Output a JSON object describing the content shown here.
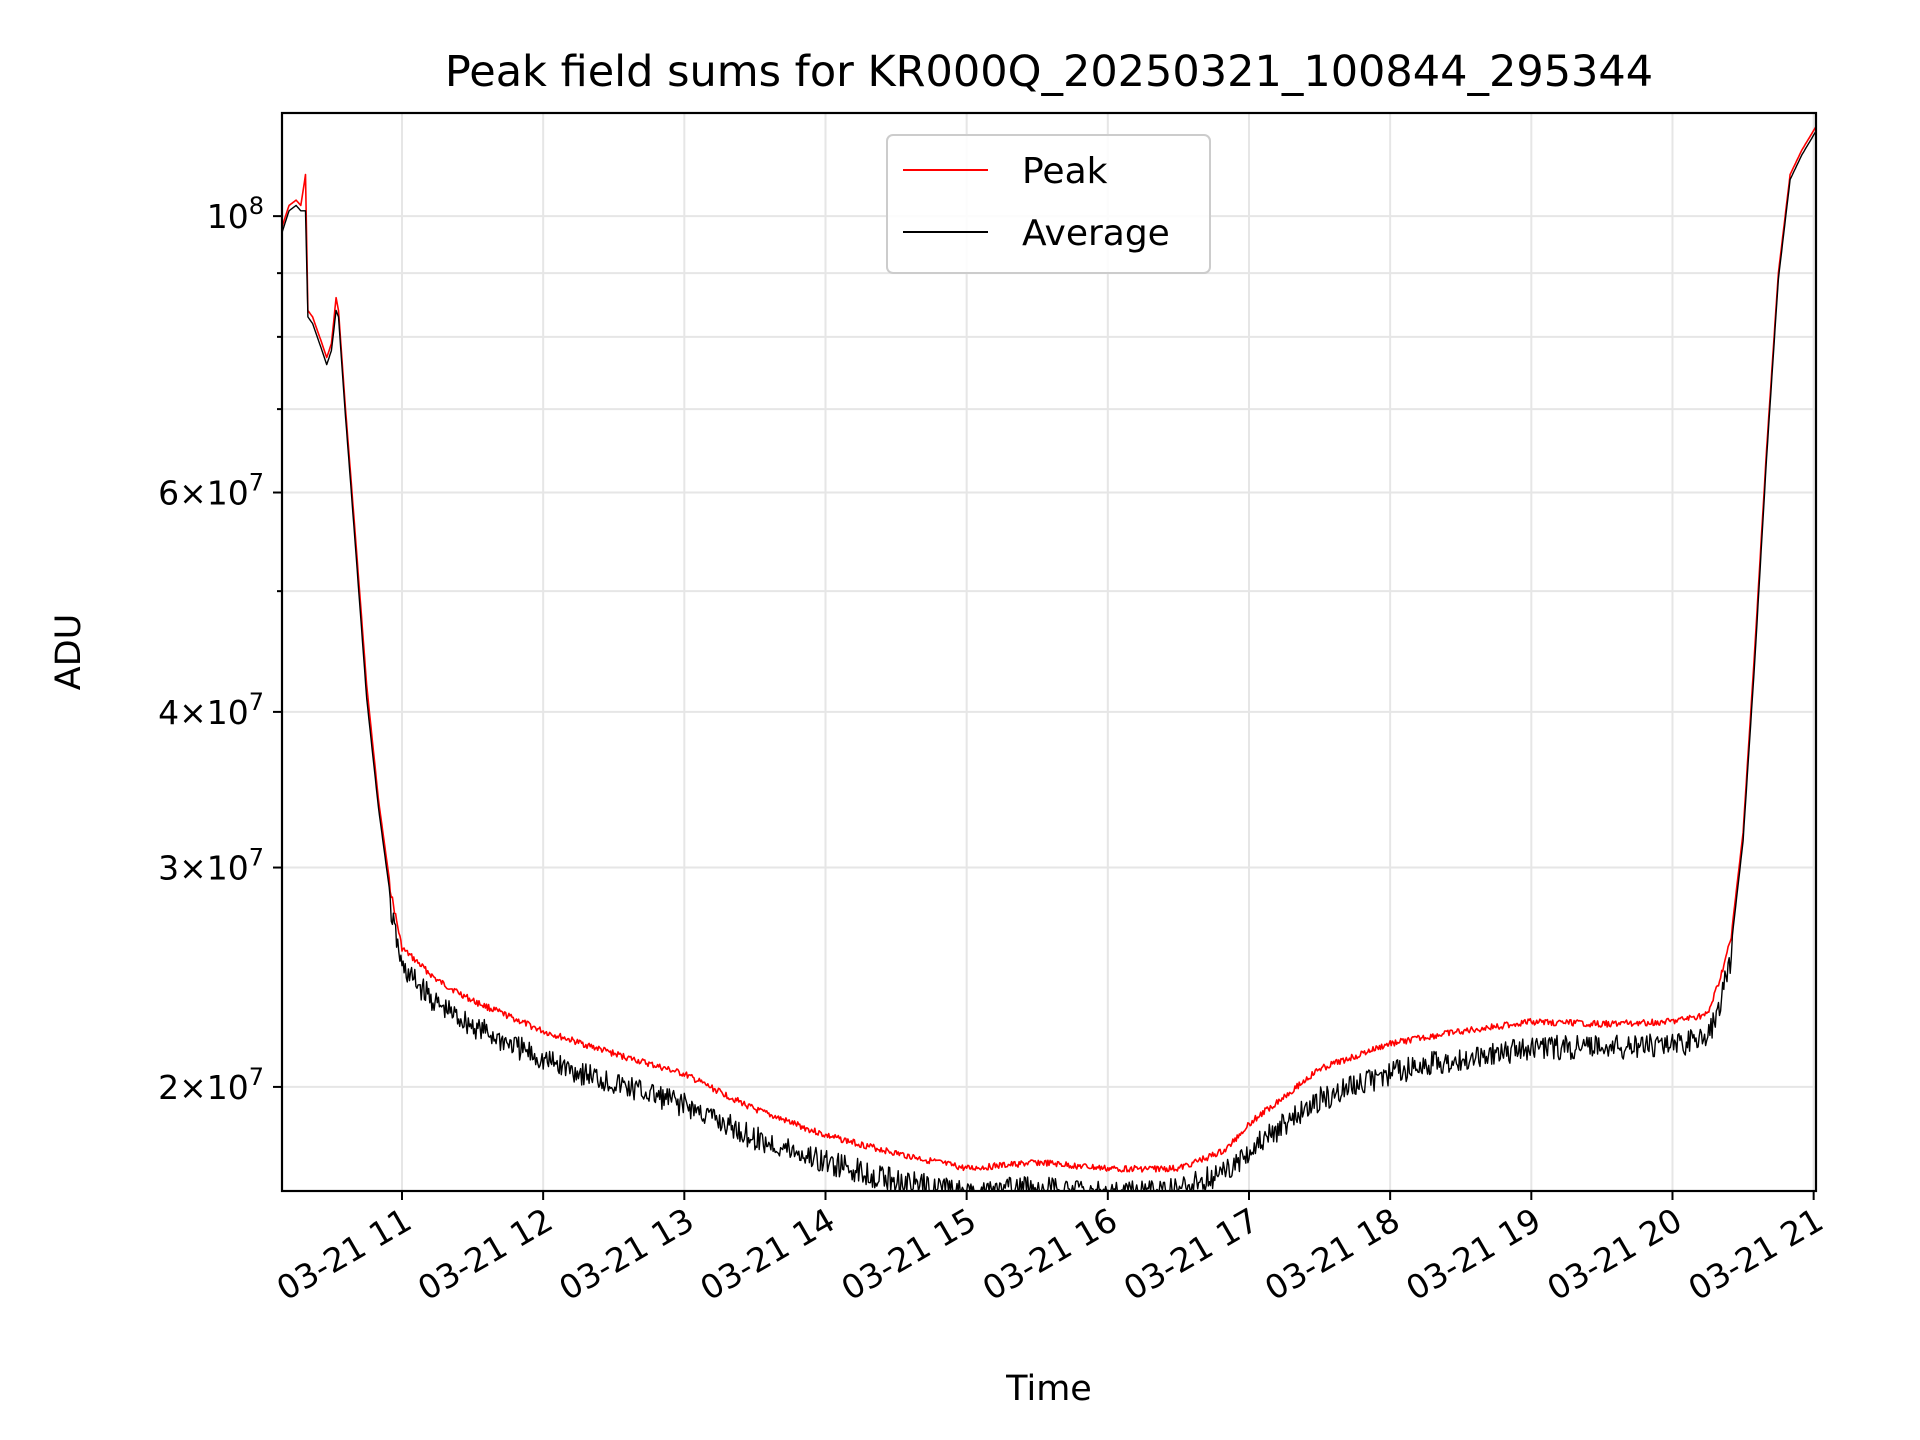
{
  "chart_data": {
    "type": "line",
    "title": "Peak field sums for KR000Q_20250321_100844_295344",
    "xlabel": "Time",
    "ylabel": "ADU",
    "yscale": "log",
    "xlim": [
      "03-21 10:09",
      "03-21 21:01"
    ],
    "ylim": [
      16500000,
      121000000
    ],
    "grid": true,
    "legend": "upper center",
    "x_ticks": [
      "03-21 11",
      "03-21 12",
      "03-21 13",
      "03-21 14",
      "03-21 15",
      "03-21 16",
      "03-21 17",
      "03-21 18",
      "03-21 19",
      "03-21 20",
      "03-21 21"
    ],
    "y_ticks": [
      {
        "value": 100000000,
        "base": "10",
        "exp": "8",
        "coef": ""
      },
      {
        "value": 60000000,
        "base": "10",
        "exp": "7",
        "coef": "6×"
      },
      {
        "value": 40000000,
        "base": "10",
        "exp": "7",
        "coef": "4×"
      },
      {
        "value": 30000000,
        "base": "10",
        "exp": "7",
        "coef": "3×"
      },
      {
        "value": 20000000,
        "base": "10",
        "exp": "7",
        "coef": "2×"
      }
    ],
    "y_minor_ticks": [
      90000000,
      80000000,
      70000000,
      50000000
    ],
    "x": [
      "03-21 10:09",
      "03-21 10:12",
      "03-21 10:15",
      "03-21 10:17",
      "03-21 10:19",
      "03-21 10:20",
      "03-21 10:22",
      "03-21 10:25",
      "03-21 10:28",
      "03-21 10:30",
      "03-21 10:32",
      "03-21 10:33",
      "03-21 10:36",
      "03-21 10:40",
      "03-21 10:45",
      "03-21 10:50",
      "03-21 10:55",
      "03-21 11:00",
      "03-21 11:15",
      "03-21 11:30",
      "03-21 12:00",
      "03-21 12:30",
      "03-21 13:00",
      "03-21 13:30",
      "03-21 14:00",
      "03-21 14:30",
      "03-21 15:00",
      "03-21 15:30",
      "03-21 16:00",
      "03-21 16:30",
      "03-21 16:50",
      "03-21 17:00",
      "03-21 17:30",
      "03-21 18:00",
      "03-21 18:30",
      "03-21 19:00",
      "03-21 19:30",
      "03-21 20:00",
      "03-21 20:15",
      "03-21 20:20",
      "03-21 20:25",
      "03-21 20:30",
      "03-21 20:35",
      "03-21 20:40",
      "03-21 20:45",
      "03-21 20:50",
      "03-21 20:55",
      "03-21 21:01"
    ],
    "series": [
      {
        "name": "Peak",
        "color": "#ff0000",
        "values": [
          98000000,
          102000000,
          103000000,
          102000000,
          108000000,
          84000000,
          83000000,
          80000000,
          77000000,
          79000000,
          86000000,
          84000000,
          70000000,
          56000000,
          42000000,
          34000000,
          29000000,
          26000000,
          24500000,
          23600000,
          22300000,
          21400000,
          20600000,
          19300000,
          18400000,
          17800000,
          17300000,
          17500000,
          17300000,
          17300000,
          17900000,
          18800000,
          20800000,
          21800000,
          22300000,
          22700000,
          22600000,
          22700000,
          23000000,
          24500000,
          26500000,
          32000000,
          45000000,
          65000000,
          90000000,
          108000000,
          113000000,
          118000000
        ]
      },
      {
        "name": "Average",
        "color": "#000000",
        "values": [
          97000000,
          101000000,
          102000000,
          101000000,
          101000000,
          83000000,
          82000000,
          79000000,
          76000000,
          78000000,
          84000000,
          83000000,
          69000000,
          55000000,
          41000000,
          33500000,
          28500000,
          25500000,
          23800000,
          22900000,
          21500000,
          20600000,
          19800000,
          18600000,
          17800000,
          17200000,
          16800000,
          17000000,
          16800000,
          16900000,
          17500000,
          18200000,
          20000000,
          21000000,
          21600000,
          22000000,
          22000000,
          22100000,
          22400000,
          23800000,
          26000000,
          31500000,
          44000000,
          64000000,
          89000000,
          107000000,
          112000000,
          117000000
        ]
      }
    ]
  }
}
